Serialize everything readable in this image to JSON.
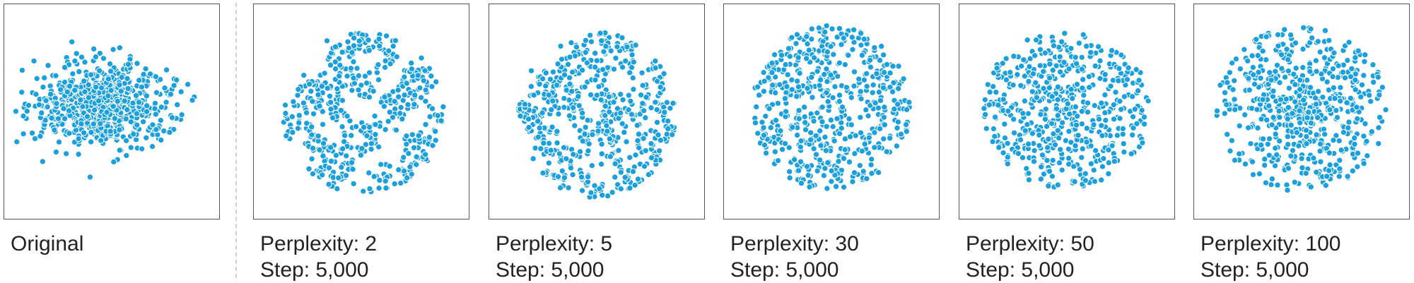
{
  "accent_color": "#1ca0dc",
  "chart_data": [
    {
      "type": "scatter",
      "title": "",
      "caption_line1": "Original",
      "caption_line2": "",
      "grid": false,
      "approx_points": 700,
      "distribution": "dense elliptical gaussian cloud, wider than tall, densest left of center, few outliers"
    },
    {
      "type": "scatter",
      "title": "",
      "caption_line1": "Perplexity: 2",
      "caption_line2": "Step: 5,000",
      "grid": false,
      "approx_points": 500,
      "distribution": "fragmented small clusters forming a rough disk with gaps"
    },
    {
      "type": "scatter",
      "title": "",
      "caption_line1": "Perplexity: 5",
      "caption_line2": "Step: 5,000",
      "grid": false,
      "approx_points": 550,
      "distribution": "loose clumps, denser in the center, irregular edges"
    },
    {
      "type": "scatter",
      "title": "",
      "caption_line1": "Perplexity: 30",
      "caption_line2": "Step: 5,000",
      "grid": false,
      "approx_points": 550,
      "distribution": "round uniform disk"
    },
    {
      "type": "scatter",
      "title": "",
      "caption_line1": "Perplexity: 50",
      "caption_line2": "Step: 5,000",
      "grid": false,
      "approx_points": 550,
      "distribution": "round disk, slightly denser center"
    },
    {
      "type": "scatter",
      "title": "",
      "caption_line1": "Perplexity: 100",
      "caption_line2": "Step: 5,000",
      "grid": false,
      "approx_points": 600,
      "distribution": "round disk with dense core"
    }
  ]
}
